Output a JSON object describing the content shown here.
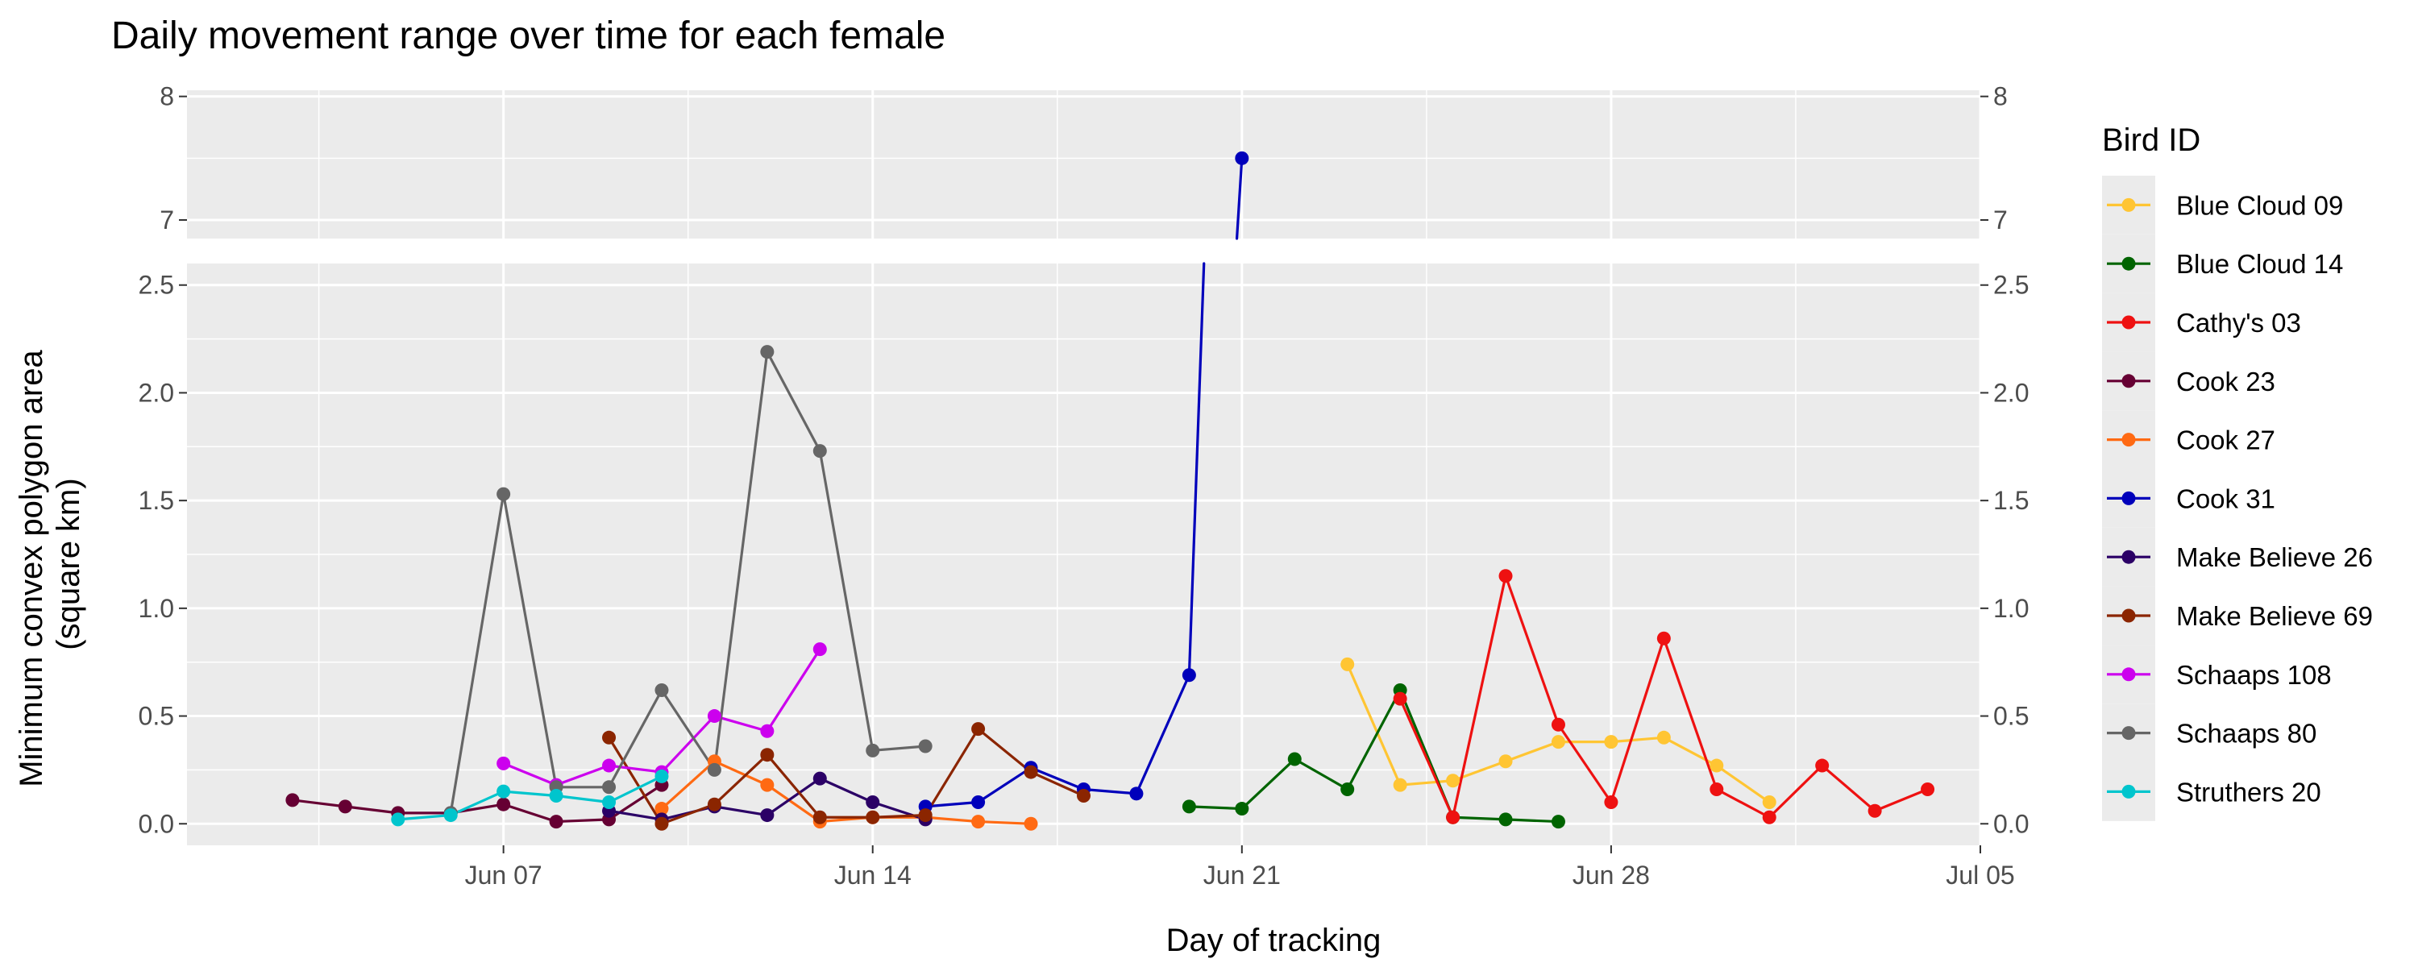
{
  "chart_data": {
    "type": "line",
    "title": "Daily movement range over time for each female",
    "xlabel": "Day of tracking",
    "ylabel": [
      "Minimum convex polygon area",
      "(square km)"
    ],
    "x_axis": {
      "type": "date",
      "range": [
        "2024-06-01",
        "2024-07-05"
      ],
      "tick_labels": [
        "Jun 07",
        "Jun 14",
        "Jun 21",
        "Jun 28",
        "Jul 05"
      ]
    },
    "y_axis": {
      "broken": true,
      "lower_range": [
        -0.1,
        2.6
      ],
      "upper_range": [
        6.85,
        8.05
      ],
      "lower_ticks": [
        "0.0",
        "0.5",
        "1.0",
        "1.5",
        "2.0",
        "2.5"
      ],
      "upper_ticks": [
        "7",
        "8"
      ]
    },
    "grid": true,
    "secondary_y_axis": true,
    "legend": {
      "title": "Bird ID",
      "position": "right"
    },
    "series": [
      {
        "name": "Blue Cloud 09",
        "color": "#FFC533",
        "x": [
          "2024-06-23",
          "2024-06-24",
          "2024-06-25",
          "2024-06-26",
          "2024-06-27",
          "2024-06-28",
          "2024-06-29",
          "2024-06-30",
          "2024-07-01"
        ],
        "y": [
          0.74,
          0.18,
          0.2,
          0.29,
          0.38,
          0.38,
          0.4,
          0.27,
          0.1
        ]
      },
      {
        "name": "Blue Cloud 14",
        "color": "#006400",
        "x": [
          "2024-06-20",
          "2024-06-21",
          "2024-06-22",
          "2024-06-23",
          "2024-06-24",
          "2024-06-25",
          "2024-06-26",
          "2024-06-27"
        ],
        "y": [
          0.08,
          0.07,
          0.3,
          0.16,
          0.62,
          0.03,
          0.02,
          0.01
        ]
      },
      {
        "name": "Cathy's 03",
        "color": "#EE1111",
        "x": [
          "2024-06-24",
          "2024-06-25",
          "2024-06-26",
          "2024-06-27",
          "2024-06-28",
          "2024-06-29",
          "2024-06-30",
          "2024-07-01",
          "2024-07-02",
          "2024-07-03",
          "2024-07-04"
        ],
        "y": [
          0.58,
          0.03,
          1.15,
          0.46,
          0.1,
          0.86,
          0.16,
          0.03,
          0.27,
          0.06,
          0.16
        ]
      },
      {
        "name": "Cook 23",
        "color": "#660033",
        "x": [
          "2024-06-03",
          "2024-06-04",
          "2024-06-05",
          "2024-06-06",
          "2024-06-07",
          "2024-06-08",
          "2024-06-09",
          "2024-06-10"
        ],
        "y": [
          0.11,
          0.08,
          0.05,
          0.05,
          0.09,
          0.01,
          0.02,
          0.18
        ]
      },
      {
        "name": "Cook 27",
        "color": "#FF6A13",
        "x": [
          "2024-06-10",
          "2024-06-11",
          "2024-06-12",
          "2024-06-13",
          "2024-06-14",
          "2024-06-15",
          "2024-06-16",
          "2024-06-17"
        ],
        "y": [
          0.07,
          0.29,
          0.18,
          0.01,
          0.03,
          0.03,
          0.01,
          0.0
        ]
      },
      {
        "name": "Cook 31",
        "color": "#0000BB",
        "x": [
          "2024-06-15",
          "2024-06-16",
          "2024-06-17",
          "2024-06-18",
          "2024-06-19",
          "2024-06-20",
          "2024-06-21"
        ],
        "y": [
          0.08,
          0.1,
          0.26,
          0.16,
          0.14,
          0.69,
          7.5
        ]
      },
      {
        "name": "Make Believe 26",
        "color": "#2B0066",
        "x": [
          "2024-06-09",
          "2024-06-10",
          "2024-06-11",
          "2024-06-12",
          "2024-06-13",
          "2024-06-14",
          "2024-06-15"
        ],
        "y": [
          0.06,
          0.02,
          0.08,
          0.04,
          0.21,
          0.1,
          0.02
        ]
      },
      {
        "name": "Make Believe 69",
        "color": "#8B2500",
        "x": [
          "2024-06-09",
          "2024-06-10",
          "2024-06-11",
          "2024-06-12",
          "2024-06-13",
          "2024-06-14",
          "2024-06-15",
          "2024-06-16",
          "2024-06-17",
          "2024-06-18"
        ],
        "y": [
          0.4,
          0.0,
          0.09,
          0.32,
          0.03,
          0.03,
          0.04,
          0.44,
          0.24,
          0.13
        ]
      },
      {
        "name": "Schaaps 108",
        "color": "#CC00EE",
        "x": [
          "2024-06-07",
          "2024-06-08",
          "2024-06-09",
          "2024-06-10",
          "2024-06-11",
          "2024-06-12",
          "2024-06-13"
        ],
        "y": [
          0.28,
          0.18,
          0.27,
          0.24,
          0.5,
          0.43,
          0.81
        ]
      },
      {
        "name": "Schaaps 80",
        "color": "#666666",
        "x": [
          "2024-06-06",
          "2024-06-07",
          "2024-06-08",
          "2024-06-09",
          "2024-06-10",
          "2024-06-11",
          "2024-06-12",
          "2024-06-13",
          "2024-06-14",
          "2024-06-15"
        ],
        "y": [
          0.05,
          1.53,
          0.17,
          0.17,
          0.62,
          0.25,
          2.19,
          1.73,
          0.34,
          0.36
        ]
      },
      {
        "name": "Struthers 20",
        "color": "#00C5CD",
        "x": [
          "2024-06-05",
          "2024-06-06",
          "2024-06-07",
          "2024-06-08",
          "2024-06-09",
          "2024-06-10"
        ],
        "y": [
          0.02,
          0.04,
          0.15,
          0.13,
          0.1,
          0.22
        ]
      }
    ]
  }
}
